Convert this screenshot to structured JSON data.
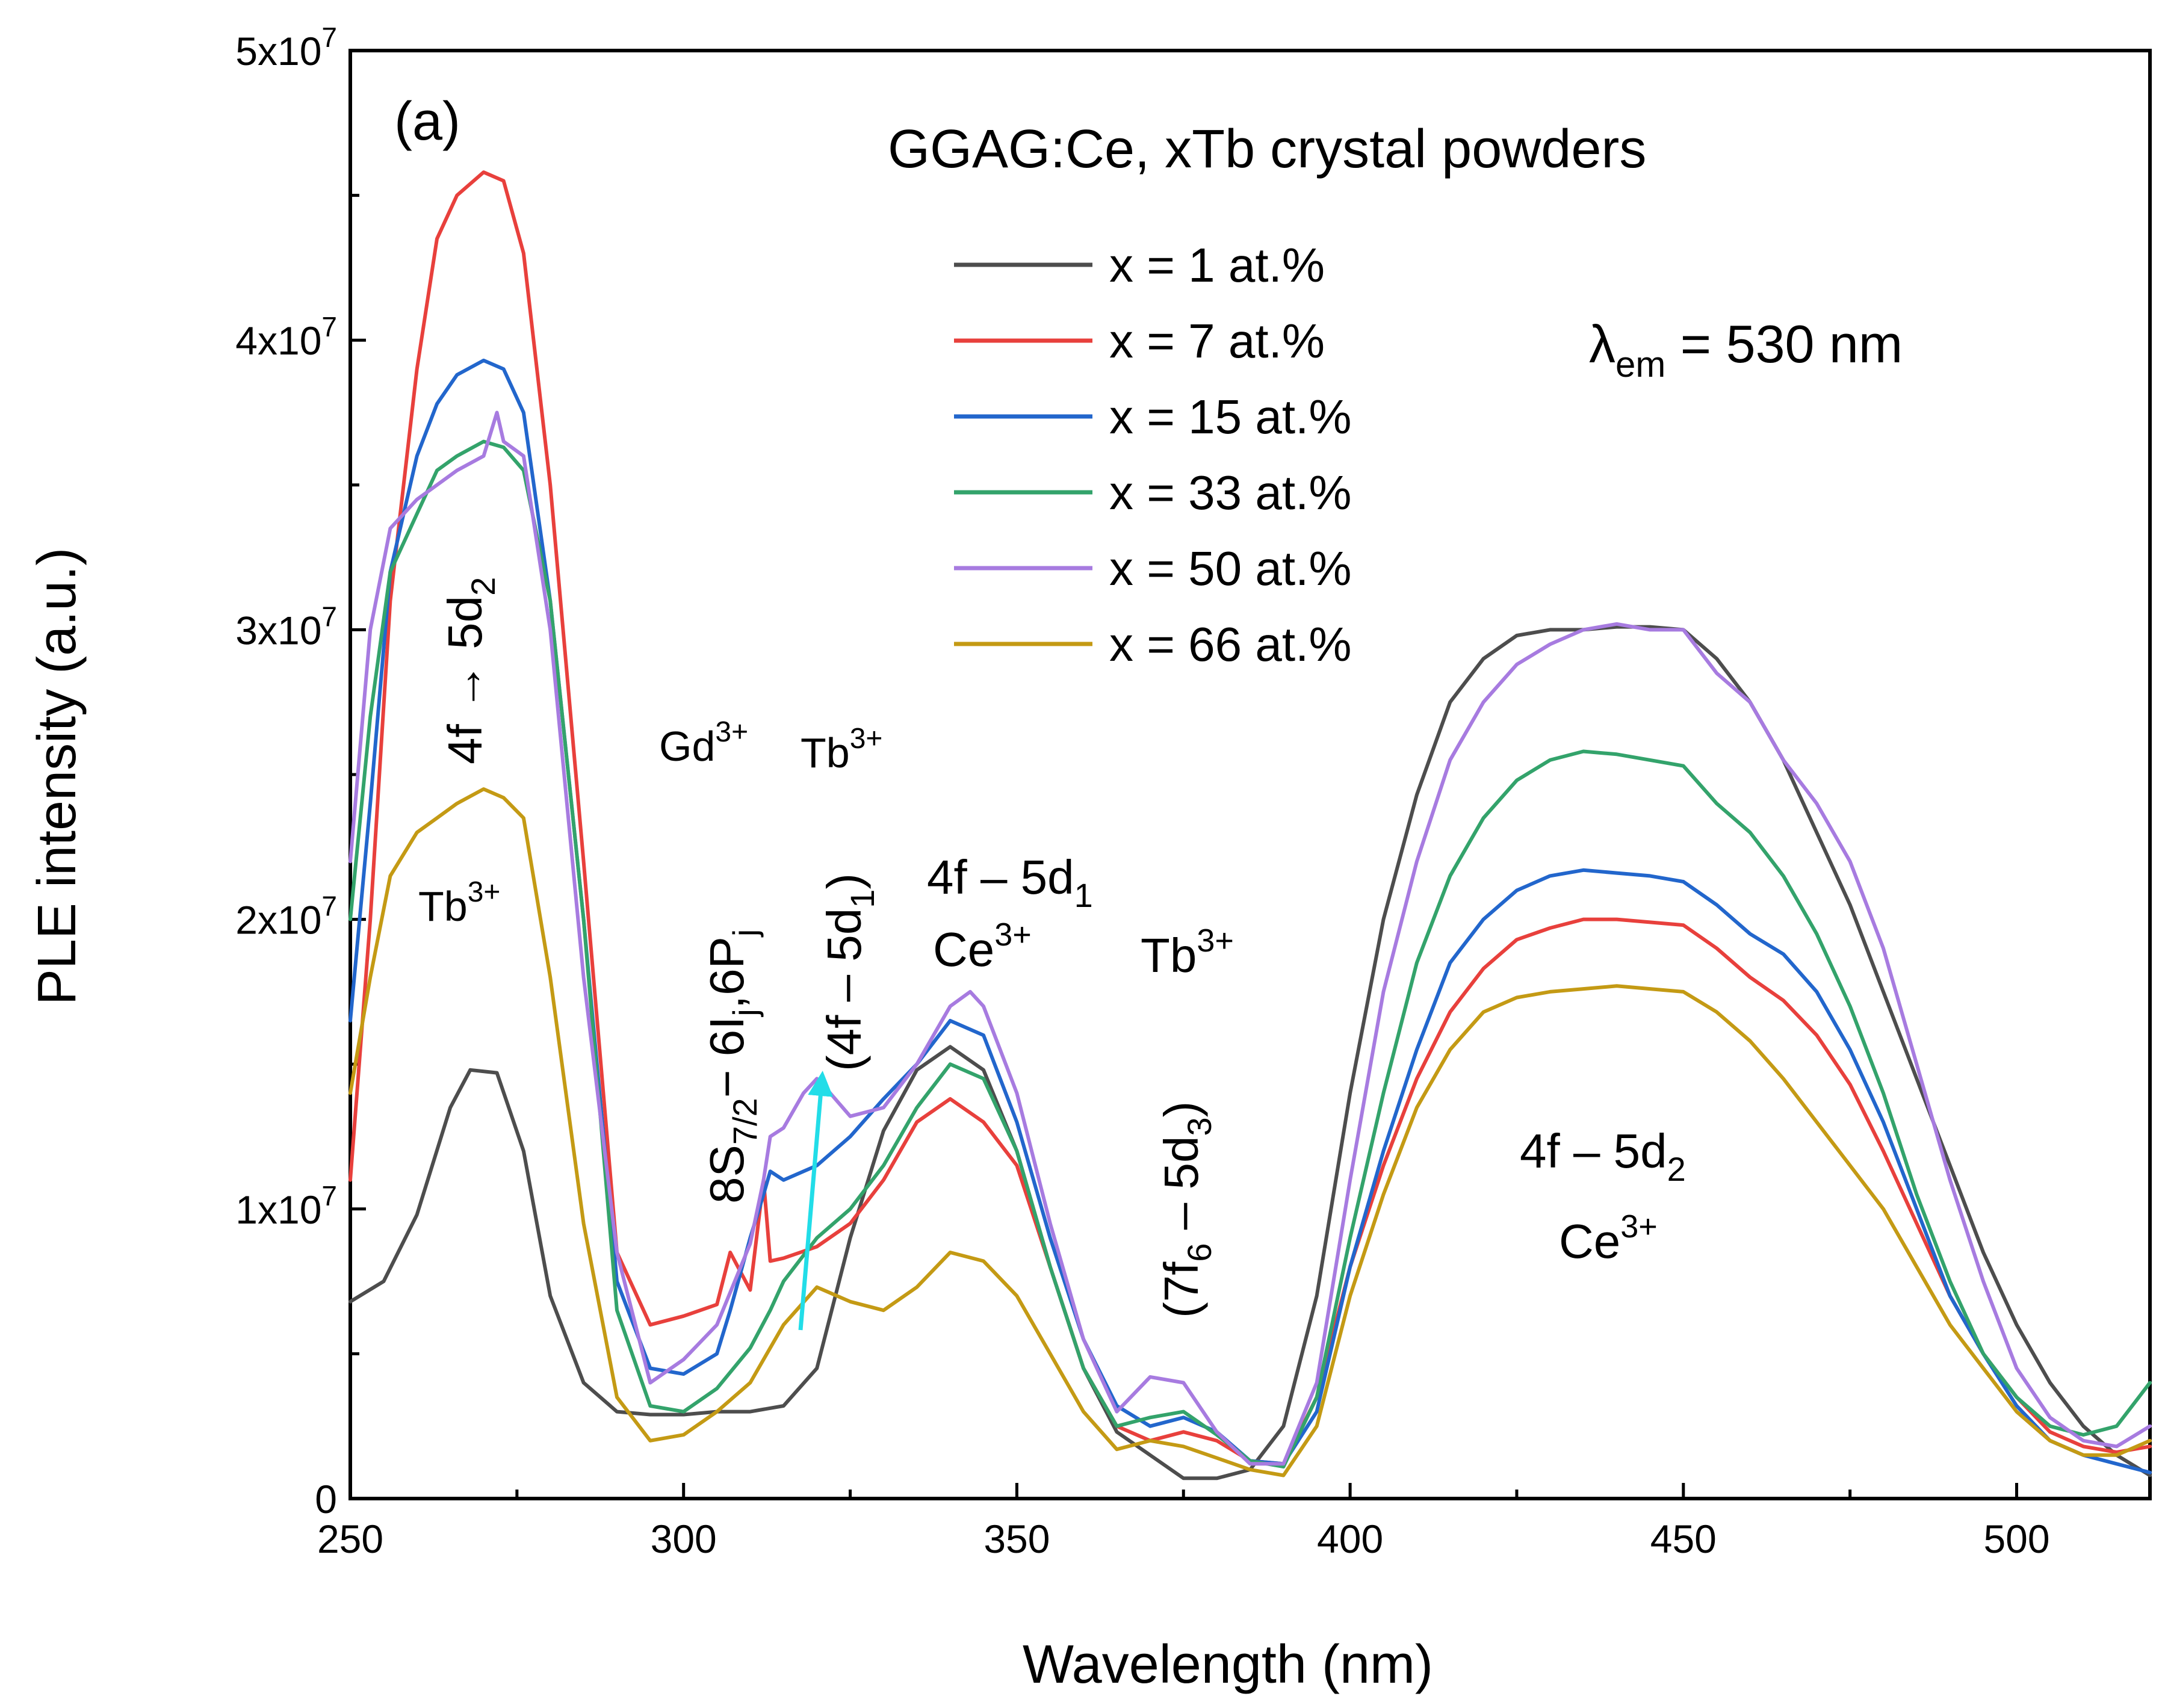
{
  "chart_data": {
    "type": "line",
    "panel_label": "(a)",
    "title": "GGAG:Ce, xTb crystal powders",
    "xlabel": "Wavelength (nm)",
    "ylabel": "PLE intensity (a.u.)",
    "xlim": [
      250,
      520
    ],
    "ylim": [
      0,
      50000000
    ],
    "x_ticks": [
      250,
      300,
      350,
      400,
      450,
      500
    ],
    "x_tick_labels": [
      "250",
      "300",
      "350",
      "400",
      "450",
      "500"
    ],
    "y_ticks": [
      0,
      10000000,
      20000000,
      30000000,
      40000000,
      50000000
    ],
    "y_tick_labels": [
      {
        "base": "0",
        "exp": ""
      },
      {
        "base": "1x10",
        "exp": "7"
      },
      {
        "base": "2x10",
        "exp": "7"
      },
      {
        "base": "3x10",
        "exp": "7"
      },
      {
        "base": "4x10",
        "exp": "7"
      },
      {
        "base": "5x10",
        "exp": "7"
      }
    ],
    "emission_note": {
      "symbol": "λ",
      "sub": "em",
      "rest": " = 530 nm"
    },
    "legend_position": "upper-center",
    "series": [
      {
        "name": "x = 1 at.%",
        "color": "#4d4d4d",
        "x": [
          250,
          255,
          260,
          265,
          268,
          272,
          276,
          280,
          285,
          290,
          295,
          300,
          305,
          310,
          315,
          320,
          325,
          330,
          335,
          340,
          345,
          350,
          355,
          360,
          365,
          370,
          375,
          380,
          385,
          390,
          395,
          400,
          405,
          410,
          415,
          420,
          425,
          430,
          435,
          440,
          445,
          450,
          455,
          460,
          465,
          470,
          475,
          480,
          485,
          490,
          495,
          500,
          505,
          510,
          515,
          520
        ],
        "y": [
          6800000,
          7500000,
          9800000,
          13500000,
          14800000,
          14700000,
          12000000,
          7000000,
          4000000,
          3000000,
          2900000,
          2900000,
          3000000,
          3000000,
          3200000,
          4500000,
          9000000,
          12700000,
          14800000,
          15600000,
          14800000,
          12000000,
          8000000,
          4500000,
          2300000,
          1500000,
          700000,
          700000,
          1000000,
          2500000,
          7000000,
          14000000,
          20000000,
          24300000,
          27500000,
          29000000,
          29800000,
          30000000,
          30000000,
          30100000,
          30100000,
          30000000,
          29000000,
          27500000,
          25500000,
          23000000,
          20500000,
          17500000,
          14500000,
          11500000,
          8500000,
          6000000,
          4000000,
          2500000,
          1500000,
          800000
        ]
      },
      {
        "name": "x = 7 at.%",
        "color": "#e8403c",
        "x": [
          250,
          253,
          256,
          260,
          263,
          266,
          270,
          273,
          276,
          280,
          285,
          290,
          295,
          300,
          305,
          307,
          310,
          312,
          313,
          315,
          320,
          325,
          330,
          335,
          340,
          345,
          350,
          355,
          360,
          365,
          370,
          375,
          380,
          385,
          390,
          395,
          400,
          405,
          410,
          415,
          420,
          425,
          430,
          435,
          440,
          445,
          450,
          455,
          460,
          465,
          470,
          475,
          480,
          485,
          490,
          495,
          500,
          505,
          510,
          515,
          520
        ],
        "y": [
          11000000,
          20000000,
          31000000,
          39000000,
          43500000,
          45000000,
          45800000,
          45500000,
          43000000,
          35000000,
          22000000,
          8500000,
          6000000,
          6300000,
          6700000,
          8500000,
          7200000,
          11000000,
          8200000,
          8300000,
          8700000,
          9500000,
          11000000,
          13000000,
          13800000,
          13000000,
          11500000,
          8000000,
          4500000,
          2500000,
          2000000,
          2300000,
          2000000,
          1300000,
          1200000,
          3500000,
          8000000,
          11500000,
          14500000,
          16800000,
          18300000,
          19300000,
          19700000,
          20000000,
          20000000,
          19900000,
          19800000,
          19000000,
          18000000,
          17200000,
          16000000,
          14300000,
          12000000,
          9500000,
          7000000,
          5000000,
          3500000,
          2300000,
          1800000,
          1600000,
          1800000
        ]
      },
      {
        "name": "x = 15 at.%",
        "color": "#2266cc",
        "x": [
          250,
          253,
          256,
          260,
          263,
          266,
          270,
          273,
          276,
          280,
          285,
          290,
          295,
          300,
          305,
          307,
          310,
          312,
          313,
          315,
          320,
          325,
          330,
          335,
          340,
          345,
          350,
          355,
          360,
          365,
          370,
          375,
          380,
          385,
          390,
          395,
          400,
          405,
          410,
          415,
          420,
          425,
          430,
          435,
          440,
          445,
          450,
          455,
          460,
          465,
          470,
          475,
          480,
          485,
          490,
          495,
          500,
          505,
          510,
          515,
          520
        ],
        "y": [
          16500000,
          24000000,
          32000000,
          36000000,
          37800000,
          38800000,
          39300000,
          39000000,
          37500000,
          31000000,
          20000000,
          7500000,
          4500000,
          4300000,
          5000000,
          6500000,
          9000000,
          10500000,
          11300000,
          11000000,
          11500000,
          12500000,
          13800000,
          15000000,
          16500000,
          16000000,
          13000000,
          9000000,
          5500000,
          3200000,
          2500000,
          2800000,
          2300000,
          1300000,
          1200000,
          3000000,
          8000000,
          12000000,
          15500000,
          18500000,
          20000000,
          21000000,
          21500000,
          21700000,
          21600000,
          21500000,
          21300000,
          20500000,
          19500000,
          18800000,
          17500000,
          15500000,
          13000000,
          10000000,
          7000000,
          5000000,
          3200000,
          2000000,
          1500000,
          1200000,
          900000
        ]
      },
      {
        "name": "x = 33 at.%",
        "color": "#33a36b",
        "x": [
          250,
          253,
          256,
          260,
          263,
          266,
          270,
          273,
          276,
          280,
          285,
          290,
          295,
          300,
          305,
          310,
          313,
          315,
          320,
          325,
          330,
          335,
          340,
          345,
          350,
          355,
          360,
          365,
          370,
          375,
          380,
          385,
          390,
          395,
          400,
          405,
          410,
          415,
          420,
          425,
          430,
          435,
          440,
          445,
          450,
          455,
          460,
          465,
          470,
          475,
          480,
          485,
          490,
          495,
          500,
          505,
          510,
          515,
          520
        ],
        "y": [
          20000000,
          27000000,
          32000000,
          34000000,
          35500000,
          36000000,
          36500000,
          36300000,
          35500000,
          31000000,
          20000000,
          6500000,
          3200000,
          3000000,
          3800000,
          5200000,
          6500000,
          7500000,
          9000000,
          10000000,
          11500000,
          13500000,
          15000000,
          14500000,
          12000000,
          8000000,
          4500000,
          2500000,
          2800000,
          3000000,
          2200000,
          1300000,
          1100000,
          3500000,
          9000000,
          14000000,
          18500000,
          21500000,
          23500000,
          24800000,
          25500000,
          25800000,
          25700000,
          25500000,
          25300000,
          24000000,
          23000000,
          21500000,
          19500000,
          17000000,
          14000000,
          10500000,
          7500000,
          5000000,
          3500000,
          2500000,
          2200000,
          2500000,
          4000000
        ]
      },
      {
        "name": "x = 50 at.%",
        "color": "#a77be0",
        "x": [
          250,
          253,
          256,
          260,
          263,
          266,
          270,
          272,
          273,
          276,
          280,
          285,
          290,
          295,
          300,
          305,
          310,
          312,
          313,
          315,
          318,
          320,
          322,
          325,
          330,
          335,
          340,
          343,
          345,
          350,
          355,
          360,
          365,
          370,
          375,
          380,
          385,
          390,
          395,
          400,
          405,
          410,
          415,
          420,
          425,
          430,
          435,
          440,
          445,
          450,
          455,
          460,
          465,
          470,
          475,
          480,
          485,
          490,
          495,
          500,
          505,
          510,
          515,
          520
        ],
        "y": [
          22000000,
          30000000,
          33500000,
          34500000,
          35000000,
          35500000,
          36000000,
          37500000,
          36500000,
          36000000,
          30000000,
          18000000,
          8500000,
          4000000,
          4800000,
          6000000,
          8800000,
          11000000,
          12500000,
          12800000,
          14000000,
          14500000,
          14000000,
          13200000,
          13500000,
          15000000,
          17000000,
          17500000,
          17000000,
          14000000,
          9500000,
          5500000,
          3000000,
          4200000,
          4000000,
          2300000,
          1200000,
          1200000,
          4000000,
          11000000,
          17500000,
          22000000,
          25500000,
          27500000,
          28800000,
          29500000,
          30000000,
          30200000,
          30000000,
          30000000,
          28500000,
          27500000,
          25500000,
          24000000,
          22000000,
          19000000,
          15000000,
          11000000,
          7500000,
          4500000,
          2800000,
          2000000,
          1800000,
          2500000
        ]
      },
      {
        "name": "x = 66 at.%",
        "color": "#c49a14",
        "x": [
          250,
          253,
          256,
          260,
          263,
          266,
          270,
          273,
          276,
          280,
          285,
          290,
          295,
          300,
          305,
          310,
          315,
          320,
          325,
          330,
          335,
          340,
          345,
          350,
          355,
          360,
          365,
          370,
          375,
          380,
          385,
          390,
          395,
          400,
          405,
          410,
          415,
          420,
          425,
          430,
          435,
          440,
          445,
          450,
          455,
          460,
          465,
          470,
          475,
          480,
          485,
          490,
          495,
          500,
          505,
          510,
          515,
          520
        ],
        "y": [
          14000000,
          18000000,
          21500000,
          23000000,
          23500000,
          24000000,
          24500000,
          24200000,
          23500000,
          18000000,
          9500000,
          3500000,
          2000000,
          2200000,
          3000000,
          4000000,
          6000000,
          7300000,
          6800000,
          6500000,
          7300000,
          8500000,
          8200000,
          7000000,
          5000000,
          3000000,
          1700000,
          2000000,
          1800000,
          1400000,
          1000000,
          800000,
          2500000,
          7000000,
          10500000,
          13500000,
          15500000,
          16800000,
          17300000,
          17500000,
          17600000,
          17700000,
          17600000,
          17500000,
          16800000,
          15800000,
          14500000,
          13000000,
          11500000,
          10000000,
          8000000,
          6000000,
          4500000,
          3000000,
          2000000,
          1500000,
          1500000,
          2000000
        ]
      }
    ],
    "annotations": {
      "gd_uv": {
        "a": "4f → 5d",
        "sub": "2"
      },
      "tb_left": {
        "base": "Tb",
        "sup": "3+"
      },
      "gd_ion": {
        "base": "Gd",
        "sup": "3+"
      },
      "tb_mid": {
        "base": "Tb",
        "sup": "3+"
      },
      "gd_trans": {
        "a": "8S",
        "asub": "7/2",
        "b": "− 6I",
        "bsub": "j",
        "c": ",6P",
        "csub": "j"
      },
      "tb_trans": {
        "a": "(4f – 5d",
        "asub": "1",
        "b": ")"
      },
      "ce_band1": "4f – 5d",
      "ce_band1_sub": "1",
      "ce1": {
        "base": "Ce",
        "sup": "3+"
      },
      "tb_right": {
        "base": "Tb",
        "sup": "3+"
      },
      "tb_right_trans": {
        "a": "(7f",
        "asub": "6",
        "b": " – 5d",
        "bsub": "3",
        "c": ")"
      },
      "ce_band2": "4f – 5d",
      "ce_band2_sub": "2",
      "ce2": {
        "base": "Ce",
        "sup": "3+"
      }
    },
    "arrow_color": "#22dde8"
  }
}
